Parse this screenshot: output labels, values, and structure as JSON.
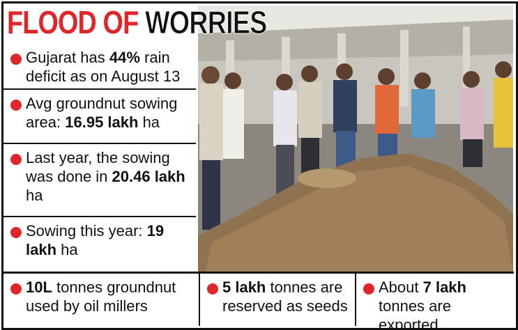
{
  "header": {
    "title_red": "FLOOD OF",
    "title_black": "WORRIES"
  },
  "facts": [
    {
      "segments": [
        "Gujarat has ",
        "44%",
        " rain deficit as on August 13"
      ]
    },
    {
      "segments": [
        "Avg groundnut sowing area: ",
        "16.95 lakh",
        " ha"
      ]
    },
    {
      "segments": [
        "Last year, the sowing was done in ",
        "20.46 lakh",
        " ha"
      ]
    },
    {
      "segments": [
        "Sowing this year: ",
        "19 lakh",
        " ha"
      ]
    },
    {
      "segments": [
        "10L",
        " tonnes groundnut used by oil millers"
      ]
    },
    {
      "segments": [
        "5 lakh",
        " tonnes are reserved as seeds"
      ]
    },
    {
      "segments": [
        "About ",
        "7 lakh",
        " tonnes are exported"
      ]
    }
  ]
}
